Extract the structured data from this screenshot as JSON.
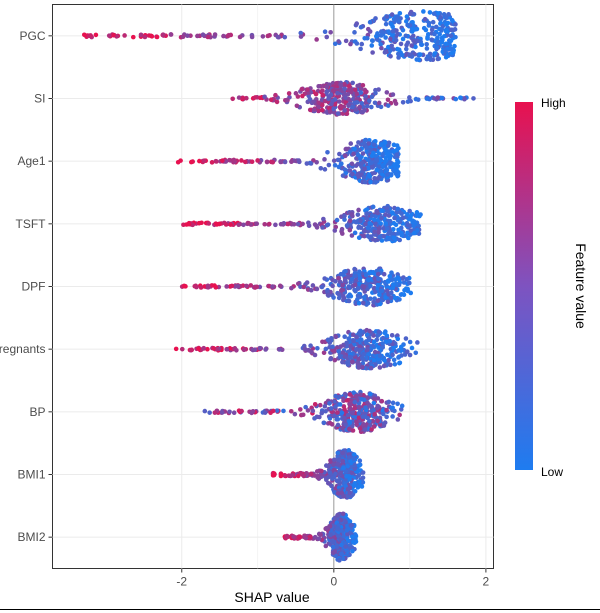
{
  "chart_data": {
    "type": "scatter",
    "subtype": "shap-beeswarm",
    "xlabel": "SHAP value",
    "ylabel": "",
    "xlim": [
      -3.7,
      2.1
    ],
    "xticks": [
      -2,
      0,
      2
    ],
    "xtick_labels": [
      "-2",
      "0",
      "2"
    ],
    "zero_line": 0,
    "grid": true,
    "features": [
      {
        "name": "PGC",
        "min": -3.35,
        "max": 1.6,
        "mode": 1.15,
        "density": 0.93,
        "high_side": "left"
      },
      {
        "name": "SI",
        "min": -1.35,
        "max": 1.85,
        "mode": 0.1,
        "density": 0.62,
        "high_side": "left-weak"
      },
      {
        "name": "Age1",
        "min": -2.05,
        "max": 0.85,
        "mode": 0.5,
        "density": 0.82,
        "high_side": "left"
      },
      {
        "name": "TSFT",
        "min": -2.0,
        "max": 1.15,
        "mode": 0.65,
        "density": 0.68,
        "high_side": "left"
      },
      {
        "name": "DPF",
        "min": -2.1,
        "max": 1.05,
        "mode": 0.45,
        "density": 0.72,
        "high_side": "left"
      },
      {
        "name": "Pregnants",
        "min": -2.1,
        "max": 1.1,
        "mode": 0.45,
        "density": 0.75,
        "high_side": "left"
      },
      {
        "name": "BP",
        "min": -1.7,
        "max": 0.9,
        "mode": 0.3,
        "density": 0.78,
        "high_side": "mixed"
      },
      {
        "name": "BMI1",
        "min": -0.8,
        "max": 0.4,
        "mode": 0.15,
        "density": 0.95,
        "high_side": "left"
      },
      {
        "name": "BMI2",
        "min": -0.65,
        "max": 0.3,
        "mode": 0.1,
        "density": 0.9,
        "high_side": "left"
      }
    ],
    "legend": {
      "title": "Feature value",
      "high_label": "High",
      "low_label": "Low",
      "position": "right"
    },
    "colors": {
      "high": "#E8114F",
      "low": "#1E7CF0",
      "mid": "#7E53C0",
      "grid": "#EBEBEB",
      "panel_border": "#333333",
      "zero_line": "#999999"
    }
  }
}
